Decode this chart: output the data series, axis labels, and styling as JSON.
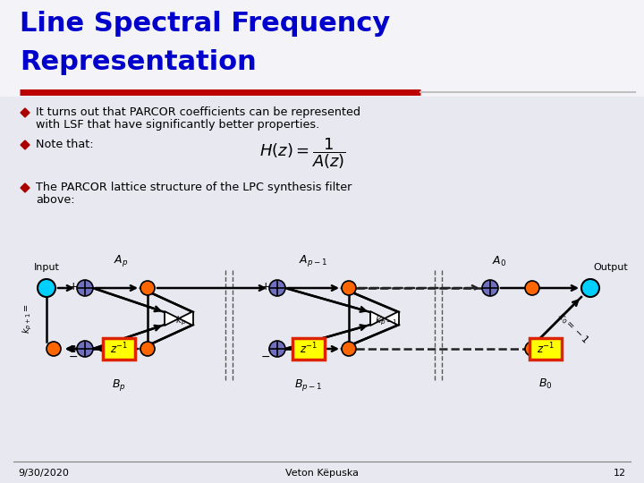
{
  "title_line1": "Line Spectral Frequency",
  "title_line2": "Representation",
  "title_color": "#0000CC",
  "bg_stripe_color": "#E8E8F0",
  "slide_bg": "#F0F0F0",
  "red_line_color": "#BB0000",
  "bullet_color": "#AA0000",
  "bullet1_line1": "It turns out that PARCOR coefficients can be represented",
  "bullet1_line2": "with LSF that have significantly better properties.",
  "bullet2": "Note that:",
  "bullet3_line1": "The PARCOR lattice structure of the LPC synthesis filter",
  "bullet3_line2": "above:",
  "footer_date": "9/30/2020",
  "footer_author": "Veton Këpuska",
  "footer_page": "12",
  "cyan_color": "#00D0FF",
  "orange_color": "#FF6600",
  "purple_color": "#7070C0",
  "yellow_color": "#FFFF00",
  "zbox_border": "#DD2200"
}
